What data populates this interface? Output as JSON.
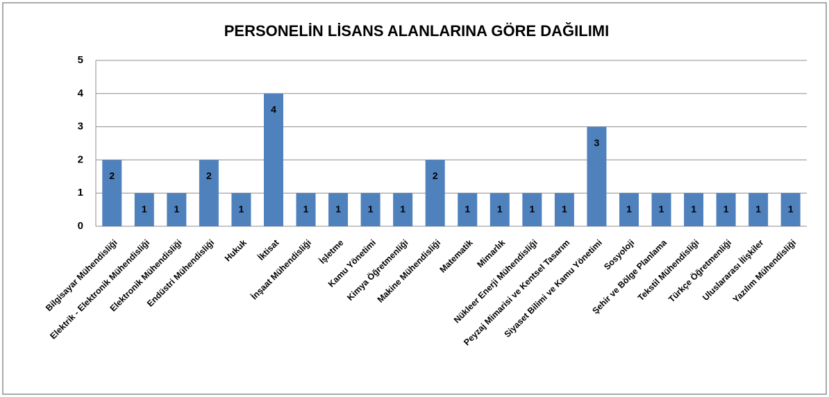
{
  "chart_data": {
    "type": "bar",
    "title": "PERSONELİN LİSANS ALANLARINA GÖRE DAĞILIMI",
    "categories": [
      "Bilgisayar Mühendisliği",
      "Elektrik - Elektronik Mühendisliği",
      "Elektronik Mühendisliği",
      "Endüstri Mühendisliği",
      "Hukuk",
      "İktisat",
      "İnşaat Mühendisliği",
      "İşletme",
      "Kamu Yönetimi",
      "Kimya Öğretmenliği",
      "Makine Mühendisliği",
      "Matematik",
      "Mimarlık",
      "Nükleer Enerji Mühendisliği",
      "Peyzaj Mimarisi ve Kentsel Tasarım",
      "Siyaset Bilimi ve Kamu Yönetimi",
      "Sosyoloji",
      "Şehir ve Bölge Planlama",
      "Tekstil Mühendisliği",
      "Türkçe Öğretmenliği",
      "Uluslararası İlişkiler",
      "Yazılım Mühendisliği"
    ],
    "values": [
      2,
      1,
      1,
      2,
      1,
      4,
      1,
      1,
      1,
      1,
      2,
      1,
      1,
      1,
      1,
      3,
      1,
      1,
      1,
      1,
      1,
      1
    ],
    "color": "#4f81bd",
    "ylim": [
      0,
      5
    ],
    "yticks": [
      0,
      1,
      2,
      3,
      4,
      5
    ],
    "grid": true
  }
}
